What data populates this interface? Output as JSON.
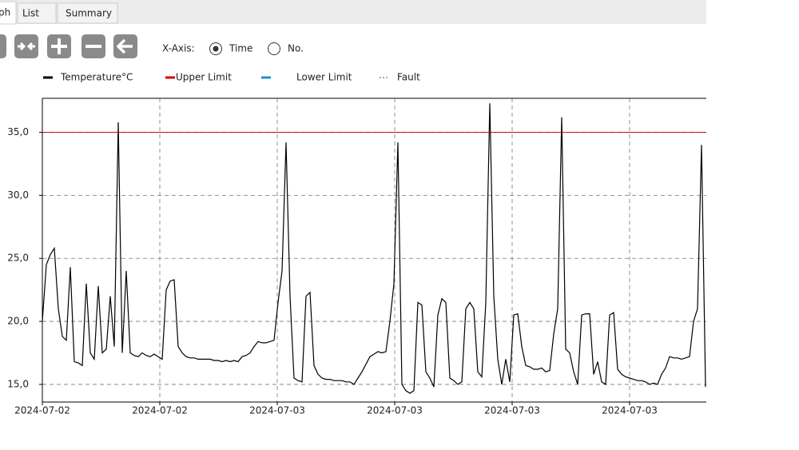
{
  "tabs": [
    "ph",
    "List",
    "Summary"
  ],
  "toolbar": {
    "x_axis_label": "X-Axis:",
    "options": [
      {
        "label": "Time",
        "selected": true
      },
      {
        "label": "No.",
        "selected": false
      }
    ]
  },
  "chart_data": {
    "type": "line",
    "series": [
      {
        "name": "Temperature°C",
        "color": "#000000",
        "values": [
          20.0,
          24.5,
          25.3,
          25.8,
          21,
          18.8,
          18.5,
          24.3,
          16.8,
          16.7,
          16.5,
          23,
          17.5,
          17,
          22.8,
          17.5,
          17.8,
          22,
          18,
          35.8,
          17.5,
          24,
          17.5,
          17.3,
          17.2,
          17.5,
          17.3,
          17.2,
          17.4,
          17.2,
          17.0,
          22.5,
          23.2,
          23.3,
          18,
          17.5,
          17.2,
          17.1,
          17.1,
          17.0,
          17.0,
          17.0,
          17.0,
          16.9,
          16.9,
          16.8,
          16.9,
          16.8,
          16.9,
          16.8,
          17.2,
          17.3,
          17.5,
          18,
          18.4,
          18.3,
          18.3,
          18.4,
          18.5,
          21.5,
          24,
          34.2,
          22,
          15.5,
          15.3,
          15.2,
          22,
          22.3,
          16.5,
          15.8,
          15.5,
          15.4,
          15.4,
          15.3,
          15.3,
          15.3,
          15.2,
          15.2,
          15.0,
          15.5,
          16,
          16.6,
          17.2,
          17.4,
          17.6,
          17.5,
          17.6,
          20,
          23,
          34.2,
          15,
          14.5,
          14.3,
          14.5,
          21.5,
          21.3,
          16,
          15.5,
          14.8,
          20.5,
          21.8,
          21.5,
          15.5,
          15.3,
          15,
          15.2,
          21,
          21.5,
          21,
          16,
          15.6,
          21.5,
          37.3,
          22,
          17,
          15,
          17,
          15.2,
          20.5,
          20.6,
          18,
          16.5,
          16.4,
          16.2,
          16.2,
          16.3,
          16.0,
          16.1,
          19,
          21,
          36.2,
          17.8,
          17.5,
          16,
          15,
          20.5,
          20.6,
          20.6,
          15.8,
          16.8,
          15.2,
          15,
          20.5,
          20.7,
          16.2,
          15.8,
          15.6,
          15.5,
          15.4,
          15.3,
          15.3,
          15.2,
          15.0,
          15.1,
          15.0,
          15.8,
          16.3,
          17.2,
          17.1,
          17.1,
          17.0,
          17.1,
          17.2,
          20,
          21,
          34,
          14.8
        ]
      },
      {
        "name": "Upper Limit",
        "color": "#d00000",
        "value": 35
      },
      {
        "name": "Lower Limit",
        "color": "#1f8fd6"
      },
      {
        "name": "Fault",
        "color": "#aaaaaa",
        "dash": "dotted"
      }
    ],
    "xlim": [
      0,
      166.2
    ],
    "xticks": [
      {
        "value": 0,
        "label": "2024-07-02"
      },
      {
        "value": 29.4,
        "label": "2024-07-02"
      },
      {
        "value": 58.8,
        "label": "2024-07-03"
      },
      {
        "value": 88.2,
        "label": "2024-07-03"
      },
      {
        "value": 117.6,
        "label": "2024-07-03"
      },
      {
        "value": 147,
        "label": "2024-07-03"
      }
    ],
    "ylim": [
      13.6,
      37.7
    ],
    "yticks": [
      {
        "value": 15,
        "label": "15,0"
      },
      {
        "value": 20,
        "label": "20,0"
      },
      {
        "value": 25,
        "label": "25,0"
      },
      {
        "value": 30,
        "label": "30,0"
      },
      {
        "value": 35,
        "label": "35,0"
      }
    ],
    "grid": true
  }
}
